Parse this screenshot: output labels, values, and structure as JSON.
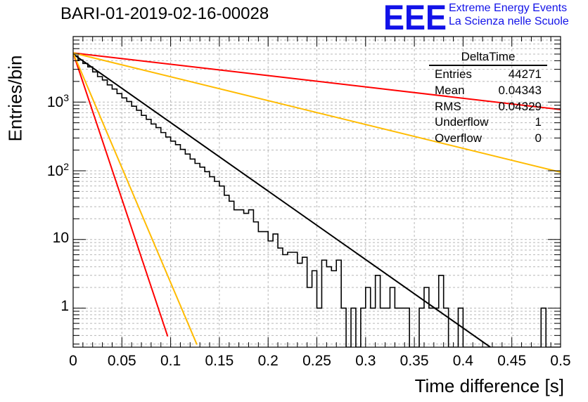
{
  "chart_data": {
    "type": "histogram",
    "title": "BARI-01-2019-02-16-00028",
    "xlabel": "Time difference [s]",
    "ylabel": "Entries/bin",
    "xlim": [
      0,
      0.5
    ],
    "ylim": [
      0.27,
      9000
    ],
    "yscale": "log",
    "grid": true,
    "x_ticks": [
      "0",
      "0.05",
      "0.1",
      "0.15",
      "0.2",
      "0.25",
      "0.3",
      "0.35",
      "0.4",
      "0.45",
      "0.5"
    ],
    "y_ticks": [
      {
        "value": 1,
        "base": "1",
        "exp": ""
      },
      {
        "value": 10,
        "base": "10",
        "exp": ""
      },
      {
        "value": 100,
        "base": "10",
        "exp": "2"
      },
      {
        "value": 1000,
        "base": "10",
        "exp": "3"
      }
    ],
    "bin_width": 0.005,
    "histogram_bins": [
      4700,
      4100,
      3650,
      3250,
      2750,
      2350,
      2100,
      1780,
      1550,
      1330,
      1150,
      1020,
      870,
      760,
      640,
      560,
      480,
      425,
      360,
      310,
      270,
      240,
      205,
      175,
      148,
      128,
      113,
      97,
      82,
      70,
      60,
      44,
      36,
      27,
      27,
      24,
      27,
      18,
      13,
      13,
      9.5,
      12,
      7.5,
      6,
      6.5,
      6.5,
      4.5,
      5.5,
      2,
      3.5,
      1,
      5,
      4,
      3.5,
      5,
      1,
      0.2,
      1,
      0.2,
      1,
      2,
      1,
      3,
      1,
      1,
      2,
      1,
      1,
      1,
      0.2,
      0.2,
      1,
      2,
      1,
      1,
      3,
      1,
      0.2,
      0.2,
      1,
      0.2,
      0.2,
      0.2,
      0.2,
      0.2,
      0.2,
      0.2,
      0.2,
      0.2,
      0.2,
      0.2,
      0.2,
      0.2,
      0.2,
      0.2,
      0.2,
      1,
      0.2,
      0.2,
      0.2
    ],
    "fit_curves": [
      {
        "type": "exponential",
        "color": "#000000",
        "y0": 5000,
        "slope": -23.0,
        "x_end": 0.428
      },
      {
        "type": "exponential",
        "color": "#ff0000",
        "y0": 5200,
        "slope": -3.8,
        "x_end": 0.5
      },
      {
        "type": "exponential",
        "color": "#ff0000",
        "y0": 5200,
        "slope": -98,
        "x_end": 0.097
      },
      {
        "type": "exponential",
        "color": "#ffbb00",
        "y0": 5200,
        "slope": -8.0,
        "x_end": 0.5
      },
      {
        "type": "exponential",
        "color": "#ffbb00",
        "y0": 5200,
        "slope": -77,
        "x_end": 0.127
      }
    ],
    "stats_box": {
      "title": "DeltaTime",
      "rows": [
        {
          "label": "Entries",
          "value": "44271"
        },
        {
          "label": "Mean",
          "value": "0.04343"
        },
        {
          "label": "RMS",
          "value": "0.04329"
        },
        {
          "label": "Underflow",
          "value": "1"
        },
        {
          "label": "Overflow",
          "value": "0"
        }
      ]
    }
  },
  "logo": {
    "letters": "EEE",
    "line1": "Extreme Energy Events",
    "line2": "La Scienza nelle Scuole",
    "color": "#1212e8"
  }
}
